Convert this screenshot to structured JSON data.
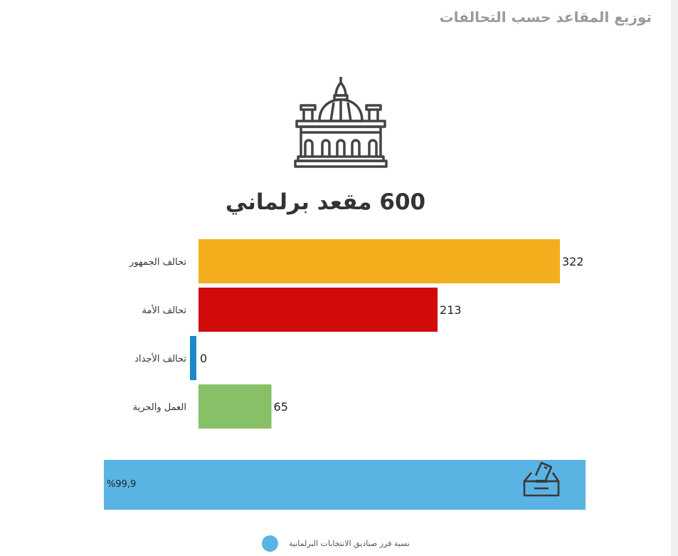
{
  "title": "توزيع المقاعد حسب التحالفات",
  "seats_title": "600 مقعد برلماني",
  "icons": {
    "header": "parliament-building-icon",
    "progress": "ballot-box-icon"
  },
  "chart_data": {
    "type": "bar",
    "orientation": "horizontal",
    "categories": [
      "تحالف الجمهور",
      "تحالف الأمة",
      "تحالف الأجداد",
      "العمل والحرية"
    ],
    "values": [
      322,
      213,
      0,
      65
    ],
    "colors": [
      "#f2ae1c",
      "#d10a0a",
      "#1e88c8",
      "#88c068"
    ],
    "xlim": [
      0,
      322
    ],
    "grid": false
  },
  "progress": {
    "label": "%99,9",
    "value": 0.999,
    "color": "#5ab4e3",
    "track_color": "#f1f1f1"
  },
  "legend": {
    "label": "نسبة فرز صناديق الانتخابات البرلمانية",
    "color": "#5ab4e3"
  }
}
